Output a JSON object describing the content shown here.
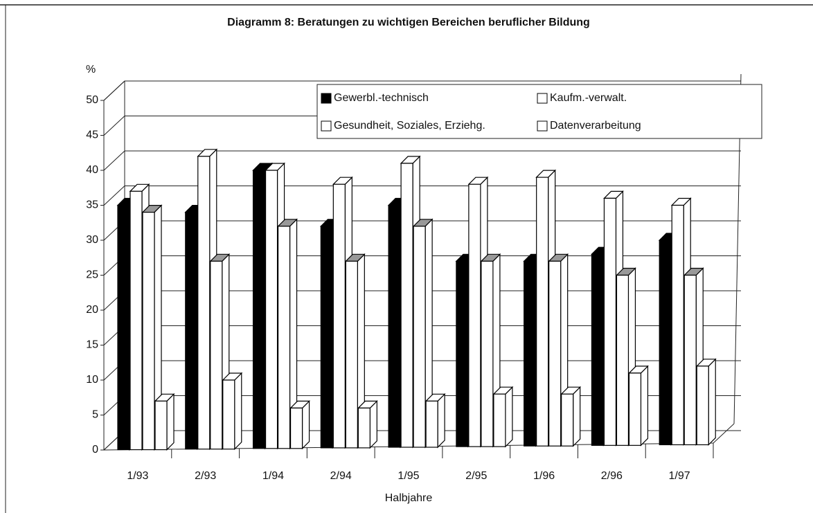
{
  "chart_data": {
    "type": "bar3d",
    "title": "Diagramm 8: Beratungen zu wichtigen Bereichen beruflicher Bildung",
    "y_label": "%",
    "x_label": "Halbjahre",
    "categories": [
      "1/93",
      "2/93",
      "1/94",
      "2/94",
      "1/95",
      "2/95",
      "1/96",
      "2/96",
      "1/97"
    ],
    "series": [
      {
        "name": "Gewerbl.-technisch",
        "color": "#000000",
        "values": [
          35,
          34,
          40,
          32,
          35,
          27,
          27,
          28,
          30
        ]
      },
      {
        "name": "Kaufm.-verwalt.",
        "color": "#ffffff",
        "values": [
          37,
          42,
          40,
          38,
          41,
          38,
          39,
          36,
          35
        ]
      },
      {
        "name": "Gesundheit, Soziales, Erziehg.",
        "color": "#ffffff",
        "values": [
          34,
          27,
          32,
          27,
          32,
          27,
          27,
          25,
          25
        ]
      },
      {
        "name": "Datenverarbeitung",
        "color": "#ffffff",
        "values": [
          7,
          10,
          6,
          6,
          7,
          8,
          8,
          11,
          12
        ]
      }
    ],
    "ylim": [
      0,
      50
    ],
    "yticks": [
      0,
      5,
      10,
      15,
      20,
      25,
      30,
      35,
      40,
      45,
      50
    ],
    "grid": true,
    "legend": "top-right"
  }
}
